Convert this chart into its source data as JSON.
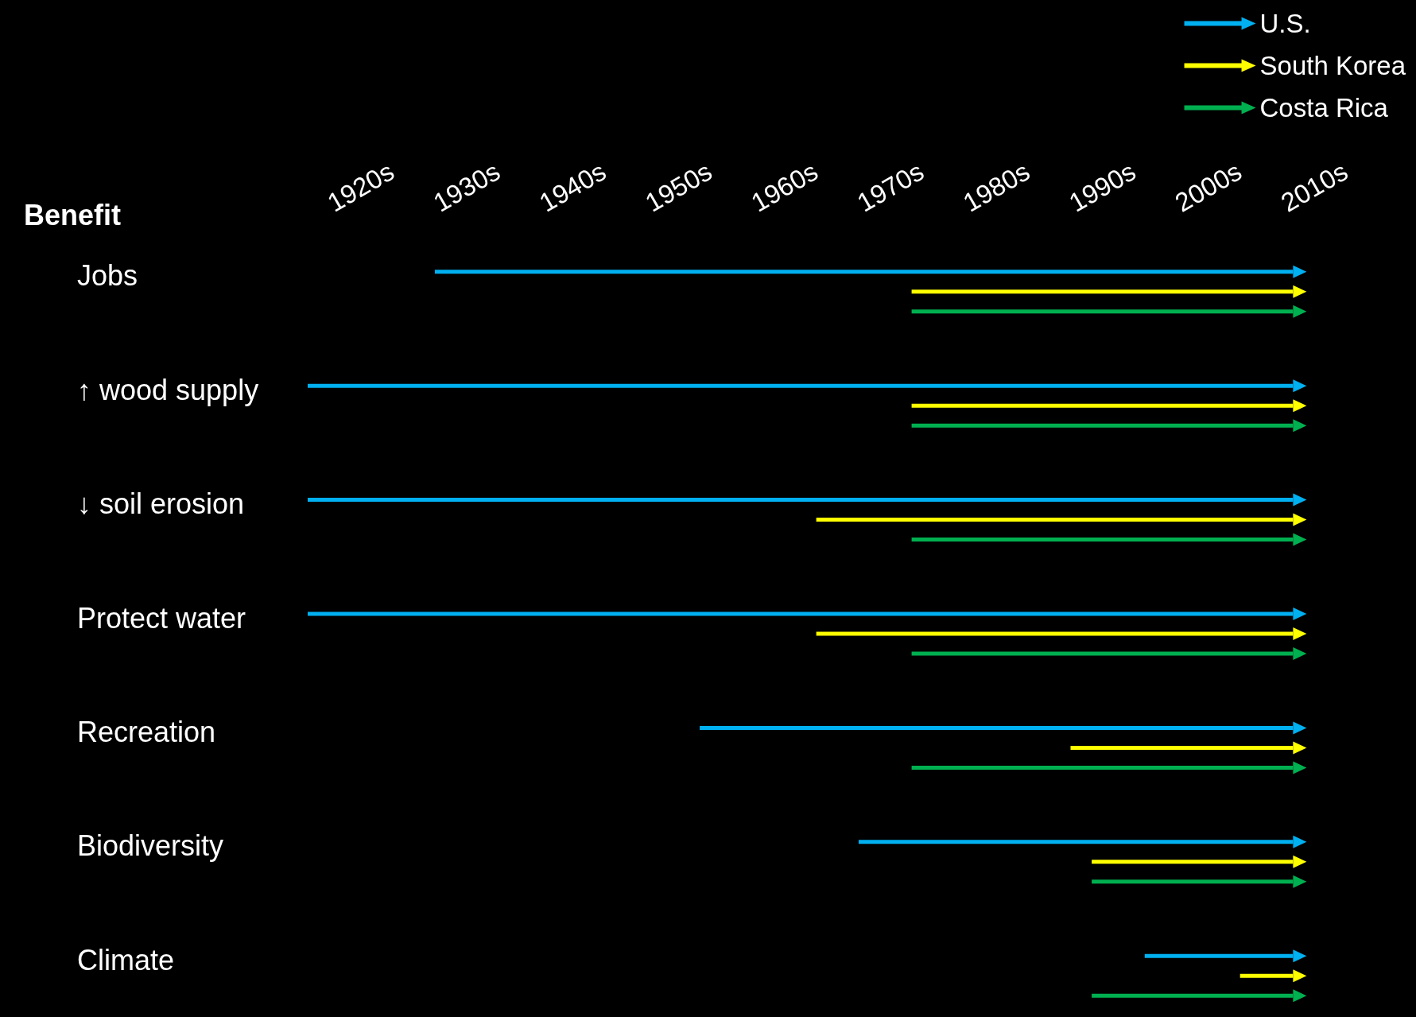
{
  "chart_data": {
    "type": "bar",
    "orientation": "horizontal",
    "ylabel": "Benefit",
    "categories": [
      "Jobs",
      "↑ wood supply",
      "↓ soil erosion",
      "Protect water",
      "Recreation",
      "Biodiversity",
      "Climate"
    ],
    "series": [
      {
        "name": "U.S.",
        "color": "#00b0f0",
        "base": [
          1927,
          1915,
          1915,
          1915,
          1952,
          1967,
          1994
        ],
        "values": [
          81,
          93,
          93,
          93,
          56,
          41,
          14
        ]
      },
      {
        "name": "South Korea",
        "color": "#ffff00",
        "base": [
          1972,
          1972,
          1963,
          1963,
          1987,
          1989,
          2003
        ],
        "values": [
          36,
          36,
          45,
          45,
          21,
          19,
          5
        ]
      },
      {
        "name": "Costa Rica",
        "color": "#00b050",
        "base": [
          1972,
          1972,
          1972,
          1972,
          1972,
          1989,
          1989
        ],
        "values": [
          36,
          36,
          36,
          36,
          36,
          19,
          19
        ]
      }
    ],
    "xlim": [
      1915,
      2010
    ],
    "xticks": [
      {
        "value": 1920,
        "label": "1920s"
      },
      {
        "value": 1930,
        "label": "1930s"
      },
      {
        "value": 1940,
        "label": "1940s"
      },
      {
        "value": 1950,
        "label": "1950s"
      },
      {
        "value": 1960,
        "label": "1960s"
      },
      {
        "value": 1970,
        "label": "1970s"
      },
      {
        "value": 1980,
        "label": "1980s"
      },
      {
        "value": 1990,
        "label": "1990s"
      },
      {
        "value": 2000,
        "label": "2000s"
      },
      {
        "value": 2010,
        "label": "2010s"
      }
    ],
    "legend": "top right",
    "grid": false
  }
}
